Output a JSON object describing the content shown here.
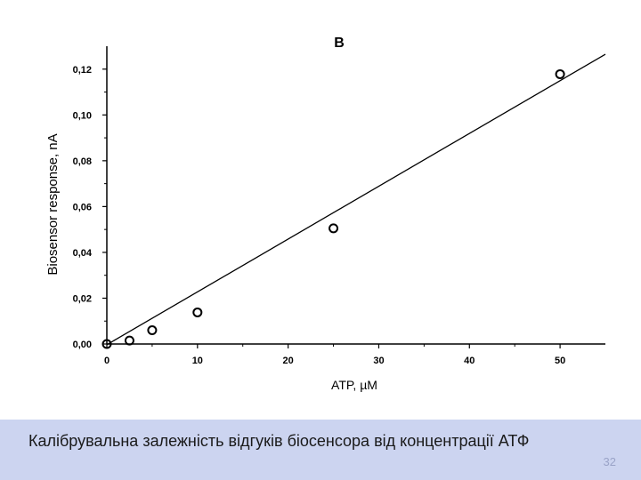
{
  "slide": {
    "caption": "Калібрувальна залежність відгуків біосенсора від концентрації АТФ",
    "number": "32",
    "caption_bg": "#ccd4f0"
  },
  "chart_data": {
    "type": "scatter",
    "title": "B",
    "xlabel": "ATP, µM",
    "ylabel": "Biosensor response, nA",
    "xlim": [
      0,
      55
    ],
    "ylim": [
      0,
      0.13
    ],
    "xticks": [
      0,
      10,
      20,
      30,
      40,
      50
    ],
    "xtick_labels": [
      "0",
      "10",
      "20",
      "30",
      "40",
      "50"
    ],
    "yticks": [
      0,
      0.02,
      0.04,
      0.06,
      0.08,
      0.1,
      0.12
    ],
    "ytick_labels": [
      "0,00",
      "0,02",
      "0,04",
      "0,06",
      "0,08",
      "0,10",
      "0,12"
    ],
    "grid": false,
    "series": [
      {
        "x": [
          0,
          2.5,
          5,
          10,
          25,
          50
        ],
        "y": [
          0.0,
          0.0015,
          0.006,
          0.0138,
          0.0505,
          0.1178
        ],
        "marker": "open-circle"
      }
    ],
    "fit_line": {
      "x": [
        0,
        55
      ],
      "y": [
        -0.0003,
        0.1265
      ]
    }
  }
}
